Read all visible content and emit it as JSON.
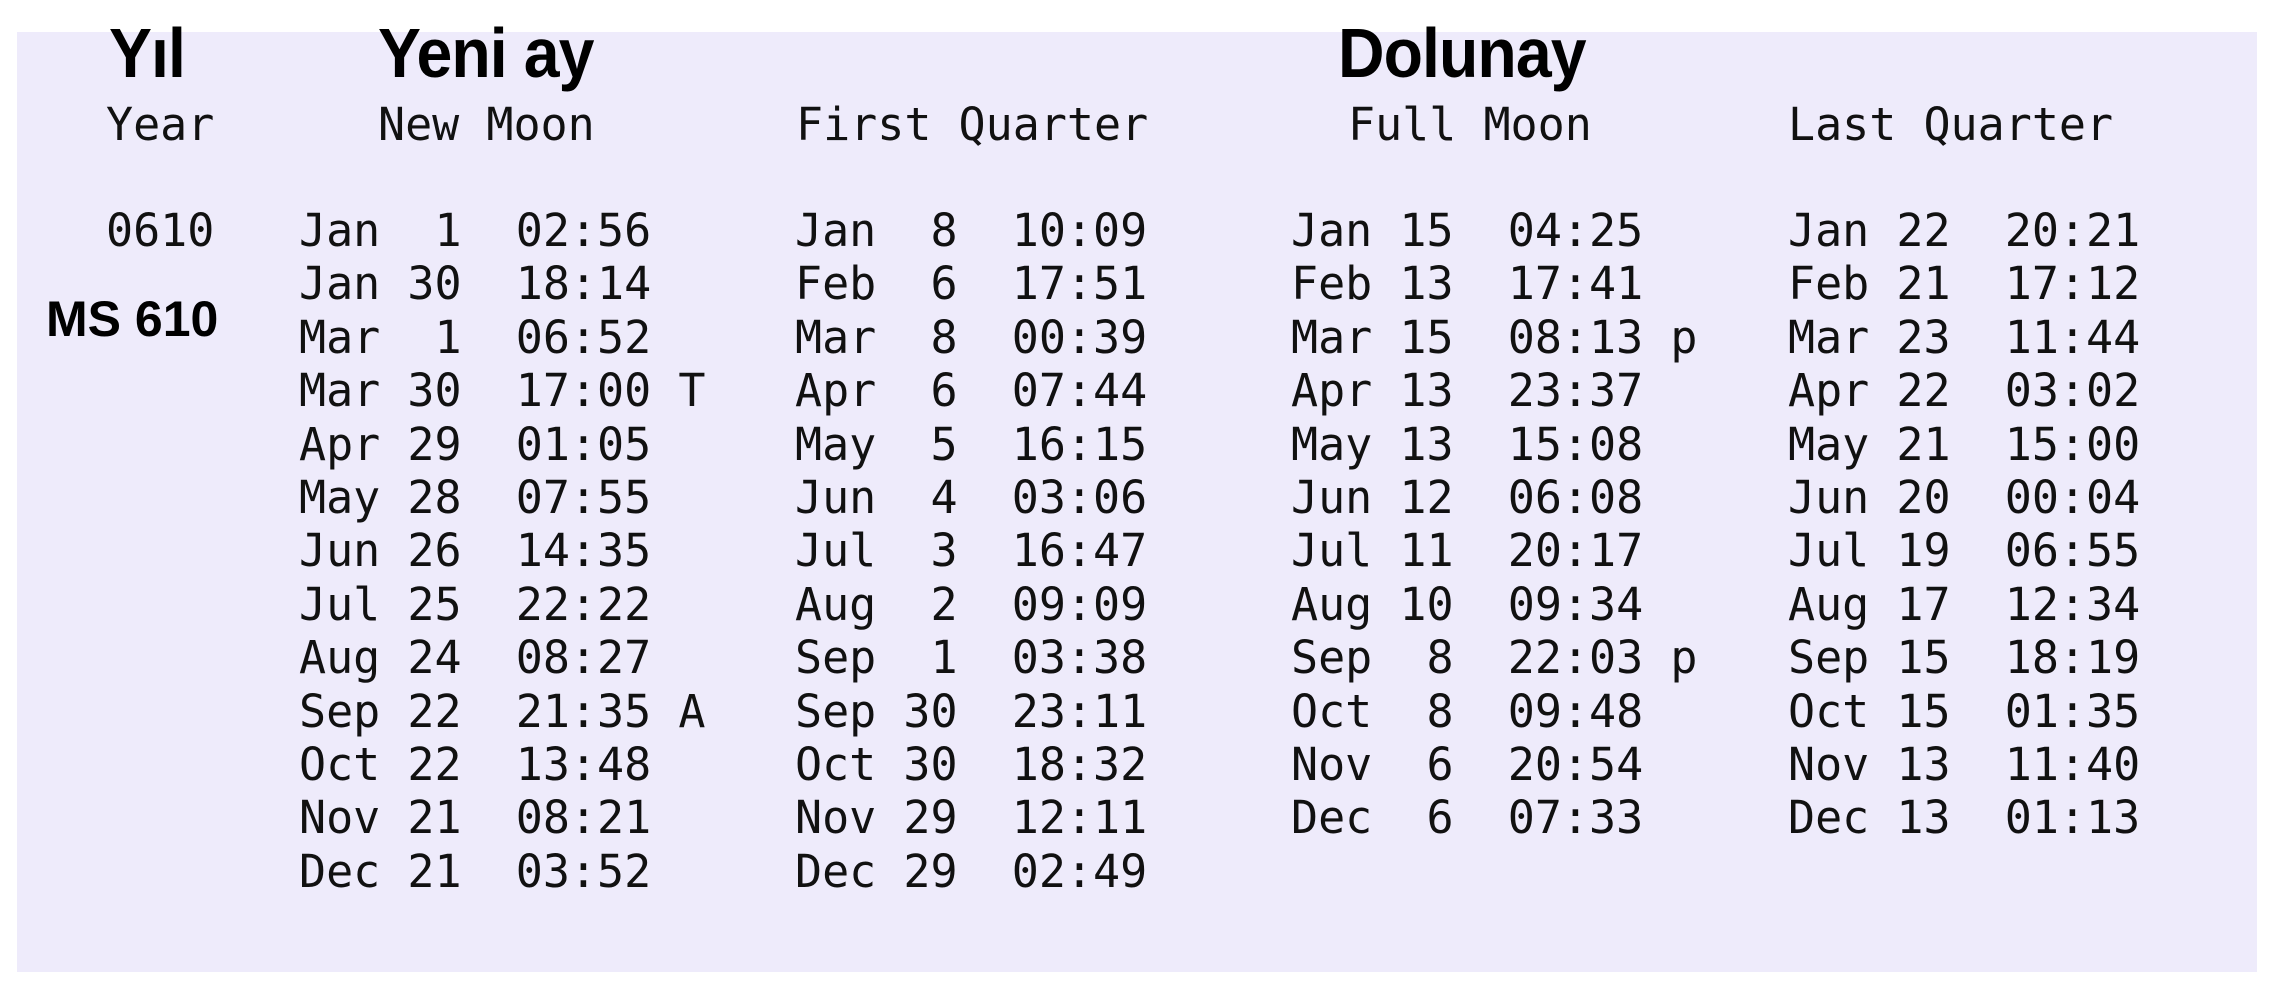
{
  "titles": {
    "year_tr": "Yıl",
    "new_moon_tr": "Yeni ay",
    "full_moon_tr": "Dolunay"
  },
  "headers": {
    "year": "Year",
    "new_moon": "New Moon",
    "first_quarter": "First Quarter",
    "full_moon": "Full Moon",
    "last_quarter": "Last Quarter"
  },
  "year": {
    "value": "0610",
    "label": "MS 610"
  },
  "colors": {
    "panel_background": "#eeebfb",
    "text": "#111111"
  },
  "columns": {
    "new_moon": [
      {
        "date": "Jan  1",
        "time": "02:56",
        "flag": ""
      },
      {
        "date": "Jan 30",
        "time": "18:14",
        "flag": ""
      },
      {
        "date": "Mar  1",
        "time": "06:52",
        "flag": ""
      },
      {
        "date": "Mar 30",
        "time": "17:00",
        "flag": "T"
      },
      {
        "date": "Apr 29",
        "time": "01:05",
        "flag": ""
      },
      {
        "date": "May 28",
        "time": "07:55",
        "flag": ""
      },
      {
        "date": "Jun 26",
        "time": "14:35",
        "flag": ""
      },
      {
        "date": "Jul 25",
        "time": "22:22",
        "flag": ""
      },
      {
        "date": "Aug 24",
        "time": "08:27",
        "flag": ""
      },
      {
        "date": "Sep 22",
        "time": "21:35",
        "flag": "A"
      },
      {
        "date": "Oct 22",
        "time": "13:48",
        "flag": ""
      },
      {
        "date": "Nov 21",
        "time": "08:21",
        "flag": ""
      },
      {
        "date": "Dec 21",
        "time": "03:52",
        "flag": ""
      }
    ],
    "first_quarter": [
      {
        "date": "Jan  8",
        "time": "10:09",
        "flag": ""
      },
      {
        "date": "Feb  6",
        "time": "17:51",
        "flag": ""
      },
      {
        "date": "Mar  8",
        "time": "00:39",
        "flag": ""
      },
      {
        "date": "Apr  6",
        "time": "07:44",
        "flag": ""
      },
      {
        "date": "May  5",
        "time": "16:15",
        "flag": ""
      },
      {
        "date": "Jun  4",
        "time": "03:06",
        "flag": ""
      },
      {
        "date": "Jul  3",
        "time": "16:47",
        "flag": ""
      },
      {
        "date": "Aug  2",
        "time": "09:09",
        "flag": ""
      },
      {
        "date": "Sep  1",
        "time": "03:38",
        "flag": ""
      },
      {
        "date": "Sep 30",
        "time": "23:11",
        "flag": ""
      },
      {
        "date": "Oct 30",
        "time": "18:32",
        "flag": ""
      },
      {
        "date": "Nov 29",
        "time": "12:11",
        "flag": ""
      },
      {
        "date": "Dec 29",
        "time": "02:49",
        "flag": ""
      }
    ],
    "full_moon": [
      {
        "date": "Jan 15",
        "time": "04:25",
        "flag": ""
      },
      {
        "date": "Feb 13",
        "time": "17:41",
        "flag": ""
      },
      {
        "date": "Mar 15",
        "time": "08:13",
        "flag": "p"
      },
      {
        "date": "Apr 13",
        "time": "23:37",
        "flag": ""
      },
      {
        "date": "May 13",
        "time": "15:08",
        "flag": ""
      },
      {
        "date": "Jun 12",
        "time": "06:08",
        "flag": ""
      },
      {
        "date": "Jul 11",
        "time": "20:17",
        "flag": ""
      },
      {
        "date": "Aug 10",
        "time": "09:34",
        "flag": ""
      },
      {
        "date": "Sep  8",
        "time": "22:03",
        "flag": "p"
      },
      {
        "date": "Oct  8",
        "time": "09:48",
        "flag": ""
      },
      {
        "date": "Nov  6",
        "time": "20:54",
        "flag": ""
      },
      {
        "date": "Dec  6",
        "time": "07:33",
        "flag": ""
      }
    ],
    "last_quarter": [
      {
        "date": "Jan 22",
        "time": "20:21",
        "flag": ""
      },
      {
        "date": "Feb 21",
        "time": "17:12",
        "flag": ""
      },
      {
        "date": "Mar 23",
        "time": "11:44",
        "flag": ""
      },
      {
        "date": "Apr 22",
        "time": "03:02",
        "flag": ""
      },
      {
        "date": "May 21",
        "time": "15:00",
        "flag": ""
      },
      {
        "date": "Jun 20",
        "time": "00:04",
        "flag": ""
      },
      {
        "date": "Jul 19",
        "time": "06:55",
        "flag": ""
      },
      {
        "date": "Aug 17",
        "time": "12:34",
        "flag": ""
      },
      {
        "date": "Sep 15",
        "time": "18:19",
        "flag": ""
      },
      {
        "date": "Oct 15",
        "time": "01:35",
        "flag": ""
      },
      {
        "date": "Nov 13",
        "time": "11:40",
        "flag": ""
      },
      {
        "date": "Dec 13",
        "time": "01:13",
        "flag": ""
      }
    ]
  }
}
